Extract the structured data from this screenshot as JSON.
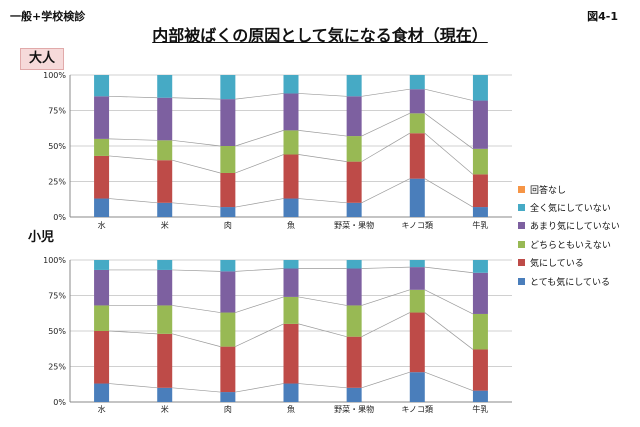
{
  "header": {
    "left_text": "一般+学校検診",
    "right_text": "図4-1"
  },
  "title": "内部被ばくの原因として気になる食材（現在）",
  "panels": {
    "adult_label": "大人",
    "child_label": "小児"
  },
  "series_colors": [
    "#4a7ebb",
    "#be4b48",
    "#98b954",
    "#7d60a0",
    "#46aac5",
    "#f69546"
  ],
  "chart_data": [
    {
      "type": "bar",
      "stacked": true,
      "percent": true,
      "panel": "大人",
      "categories": [
        "水",
        "米",
        "肉",
        "魚",
        "野菜・果物",
        "キノコ類",
        "牛乳"
      ],
      "y_ticks": [
        "0%",
        "25%",
        "50%",
        "75%",
        "100%"
      ],
      "ylim": [
        0,
        100
      ],
      "series": [
        {
          "name": "とても気にしている",
          "values": [
            13,
            10,
            7,
            13,
            10,
            27,
            7
          ]
        },
        {
          "name": "気にしている",
          "values": [
            30,
            30,
            24,
            31,
            29,
            32,
            23
          ]
        },
        {
          "name": "どちらともいえない",
          "values": [
            12,
            14,
            19,
            17,
            18,
            14,
            18
          ]
        },
        {
          "name": "あまり気にしていない",
          "values": [
            30,
            30,
            33,
            26,
            28,
            17,
            34
          ]
        },
        {
          "name": "全く気にしていない",
          "values": [
            15,
            16,
            17,
            13,
            15,
            10,
            18
          ]
        },
        {
          "name": "回答なし",
          "values": [
            0,
            0,
            0,
            0,
            0,
            0,
            0
          ]
        }
      ]
    },
    {
      "type": "bar",
      "stacked": true,
      "percent": true,
      "panel": "小児",
      "categories": [
        "水",
        "米",
        "肉",
        "魚",
        "野菜・果物",
        "キノコ類",
        "牛乳"
      ],
      "y_ticks": [
        "0%",
        "25%",
        "50%",
        "75%",
        "100%"
      ],
      "ylim": [
        0,
        100
      ],
      "series": [
        {
          "name": "とても気にしている",
          "values": [
            13,
            10,
            7,
            13,
            10,
            21,
            8
          ]
        },
        {
          "name": "気にしている",
          "values": [
            37,
            38,
            32,
            42,
            36,
            42,
            29
          ]
        },
        {
          "name": "どちらともいえない",
          "values": [
            18,
            20,
            24,
            19,
            22,
            16,
            25
          ]
        },
        {
          "name": "あまり気にしていない",
          "values": [
            25,
            25,
            29,
            20,
            26,
            16,
            29
          ]
        },
        {
          "name": "全く気にしていない",
          "values": [
            7,
            7,
            8,
            6,
            6,
            5,
            9
          ]
        },
        {
          "name": "回答なし",
          "values": [
            0,
            0,
            0,
            0,
            0,
            0,
            0
          ]
        }
      ]
    }
  ],
  "legend": [
    {
      "label": "回答なし",
      "color": "#f69546"
    },
    {
      "label": "全く気にしていない",
      "color": "#46aac5"
    },
    {
      "label": "あまり気にしていない",
      "color": "#7d60a0"
    },
    {
      "label": "どちらともいえない",
      "color": "#98b954"
    },
    {
      "label": "気にしている",
      "color": "#be4b48"
    },
    {
      "label": "とても気にしている",
      "color": "#4a7ebb"
    }
  ]
}
